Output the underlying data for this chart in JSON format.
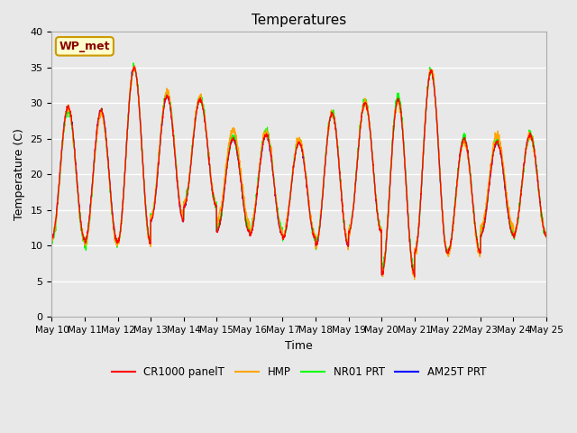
{
  "title": "Temperatures",
  "xlabel": "Time",
  "ylabel": "Temperature (C)",
  "ylim": [
    0,
    40
  ],
  "x_tick_labels": [
    "May 10",
    "May 11",
    "May 12",
    "May 13",
    "May 14",
    "May 15",
    "May 16",
    "May 17",
    "May 18",
    "May 19",
    "May 20",
    "May 21",
    "May 22",
    "May 23",
    "May 24",
    "May 25"
  ],
  "annotation_text": "WP_met",
  "annotation_bg": "#ffffcc",
  "annotation_border": "#cc9900",
  "annotation_text_color": "#880000",
  "plot_bg": "#e8e8e8",
  "legend_entries": [
    "CR1000 panelT",
    "HMP",
    "NR01 PRT",
    "AM25T PRT"
  ],
  "line_colors": [
    "red",
    "orange",
    "lime",
    "blue"
  ],
  "peaks": [
    {
      "day": 0.3,
      "max": 29.5,
      "min_prev": 11.5,
      "min_next": 11.0
    },
    {
      "day": 1.3,
      "max": 29.0,
      "min_prev": 11.0,
      "min_next": 10.5
    },
    {
      "day": 2.3,
      "max": 35.0,
      "min_prev": 10.5,
      "min_next": 10.5
    },
    {
      "day": 3.3,
      "max": 31.0,
      "min_prev": 10.5,
      "min_next": 13.5
    },
    {
      "day": 4.3,
      "max": 30.5,
      "min_prev": 13.5,
      "min_next": 15.5
    },
    {
      "day": 5.3,
      "max": 25.0,
      "min_prev": 15.5,
      "min_next": 12.0
    },
    {
      "day": 6.3,
      "max": 25.5,
      "min_prev": 12.0,
      "min_next": 11.5
    },
    {
      "day": 7.3,
      "max": 24.5,
      "min_prev": 11.5,
      "min_next": 11.0
    },
    {
      "day": 8.3,
      "max": 28.5,
      "min_prev": 11.0,
      "min_next": 10.0
    },
    {
      "day": 9.3,
      "max": 30.0,
      "min_prev": 10.0,
      "min_next": 12.0
    },
    {
      "day": 10.3,
      "max": 30.5,
      "min_prev": 12.0,
      "min_next": 6.0
    },
    {
      "day": 11.3,
      "max": 34.5,
      "min_prev": 6.0,
      "min_next": 9.0
    },
    {
      "day": 12.3,
      "max": 25.0,
      "min_prev": 9.0,
      "min_next": 9.0
    },
    {
      "day": 13.3,
      "max": 24.5,
      "min_prev": 9.0,
      "min_next": 11.5
    },
    {
      "day": 14.3,
      "max": 25.5,
      "min_prev": 11.5,
      "min_next": 11.5
    }
  ]
}
